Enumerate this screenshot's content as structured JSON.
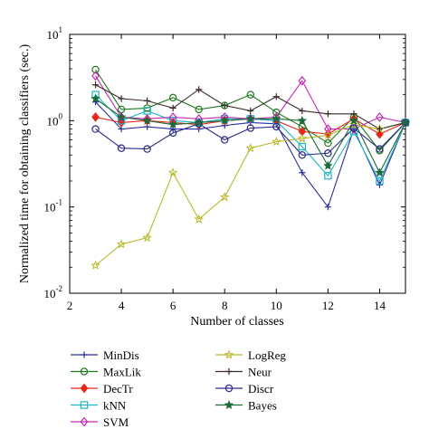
{
  "chart_data": {
    "type": "line",
    "title": "",
    "xlabel": "Number of classes",
    "ylabel": "Normalized time for obtaining classifiers (sec.)",
    "xlim": [
      2,
      15
    ],
    "ylim": [
      0.01,
      10
    ],
    "yscale": "log",
    "xticks": [
      2,
      4,
      6,
      8,
      10,
      12,
      14
    ],
    "yticks": [
      {
        "value": 0.01,
        "base": "10",
        "exp": "-2"
      },
      {
        "value": 0.1,
        "base": "10",
        "exp": "-1"
      },
      {
        "value": 1,
        "base": "10",
        "exp": "0"
      },
      {
        "value": 10,
        "base": "10",
        "exp": "1"
      }
    ],
    "x": [
      3,
      4,
      5,
      6,
      7,
      8,
      9,
      10,
      11,
      12,
      13,
      14,
      15
    ],
    "legend_placement": "below",
    "series": [
      {
        "name": "MinDis",
        "color": "#2b2fa0",
        "marker": "plus",
        "values": [
          1.65,
          0.8,
          0.85,
          0.8,
          0.8,
          0.88,
          0.95,
          0.92,
          0.25,
          0.1,
          0.8,
          0.18,
          0.95
        ]
      },
      {
        "name": "MaxLik",
        "color": "#1e7a1e",
        "marker": "circle",
        "values": [
          3.9,
          1.35,
          1.4,
          1.85,
          1.35,
          1.5,
          2.0,
          1.25,
          0.85,
          0.55,
          1.1,
          0.45,
          0.95
        ]
      },
      {
        "name": "DecTr",
        "color": "#e8261a",
        "marker": "diamond-filled",
        "values": [
          1.1,
          0.95,
          1.0,
          0.95,
          0.9,
          1.0,
          1.05,
          1.0,
          0.75,
          0.7,
          1.05,
          0.7,
          0.95
        ]
      },
      {
        "name": "kNN",
        "color": "#1fb5c4",
        "marker": "square",
        "values": [
          2.0,
          1.0,
          1.3,
          1.0,
          0.95,
          1.05,
          1.05,
          1.0,
          0.5,
          0.23,
          0.75,
          0.2,
          0.95
        ]
      },
      {
        "name": "SVM",
        "color": "#c42ab5",
        "marker": "diamond",
        "values": [
          3.3,
          1.1,
          1.05,
          1.1,
          1.05,
          1.1,
          1.05,
          1.1,
          2.9,
          0.8,
          0.8,
          1.1,
          0.95
        ]
      },
      {
        "name": "LogReg",
        "color": "#b8b82a",
        "marker": "star",
        "values": [
          0.021,
          0.037,
          0.044,
          0.25,
          0.072,
          0.13,
          0.48,
          0.57,
          0.62,
          0.68,
          0.9,
          0.8,
          0.95
        ]
      },
      {
        "name": "Neur",
        "color": "#3a2a2a",
        "marker": "plus",
        "values": [
          2.6,
          1.8,
          1.7,
          1.4,
          2.3,
          1.5,
          1.3,
          1.9,
          1.3,
          1.2,
          1.2,
          0.8,
          0.95
        ]
      },
      {
        "name": "Discr",
        "color": "#2b2a8a",
        "marker": "circle",
        "values": [
          0.8,
          0.48,
          0.47,
          0.72,
          0.92,
          0.6,
          0.82,
          0.85,
          0.4,
          0.42,
          0.82,
          0.47,
          0.95
        ]
      },
      {
        "name": "Bayes",
        "color": "#1e6a3a",
        "marker": "star-filled",
        "values": [
          1.8,
          1.1,
          1.0,
          0.9,
          0.95,
          1.0,
          1.05,
          1.05,
          1.0,
          0.3,
          1.0,
          0.25,
          0.95
        ]
      }
    ]
  }
}
